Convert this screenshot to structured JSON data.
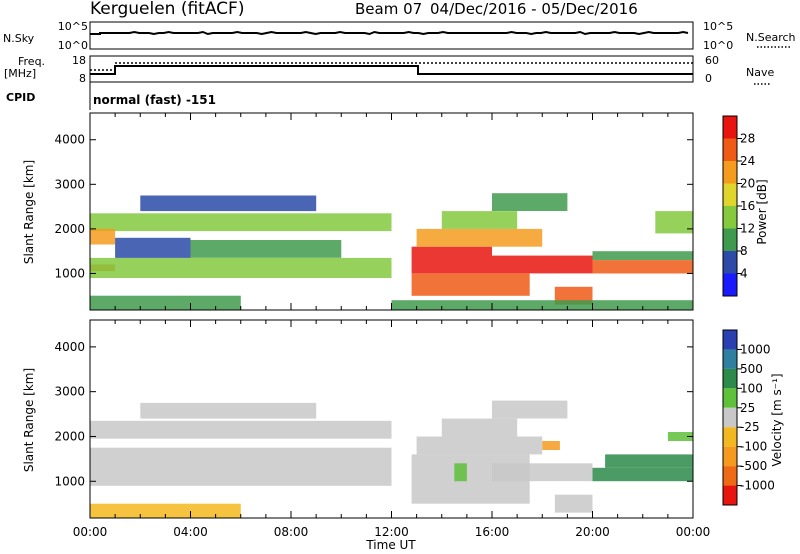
{
  "header": {
    "station": "Kerguelen (fitACF)",
    "beam_label": "Beam 07",
    "date_range": "04/Dec/2016 - 05/Dec/2016"
  },
  "aux": {
    "nsky_label": "N.Sky",
    "nsky_ticks": [
      "10^5",
      "10^0"
    ],
    "nsearch_label": "N.Search",
    "nsearch_ticks": [
      "10^5",
      "10^0"
    ],
    "freq_label_1": "Freq.",
    "freq_label_2": "[MHz]",
    "freq_ticks": [
      "18",
      "8"
    ],
    "nave_label": "Nave",
    "nave_ticks": [
      "60",
      "0"
    ],
    "cpid_label": "CPID",
    "cpid_text": "normal (fast) -151"
  },
  "axes": {
    "ylabel": "Slant Range [km]",
    "xlabel": "Time UT",
    "xticks": [
      "00:00",
      "04:00",
      "08:00",
      "12:00",
      "16:00",
      "20:00",
      "00:00"
    ],
    "yticks": [
      "1000",
      "2000",
      "3000",
      "4000"
    ]
  },
  "colors": {
    "power_scale": [
      "#1a1aff",
      "#2c4aa8",
      "#3f9a4e",
      "#84c93e",
      "#e0d52a",
      "#f59c1f",
      "#ef5b16",
      "#e8150e"
    ],
    "velocity_scale": [
      "#2a3fb0",
      "#2e7fa0",
      "#2c8a4a",
      "#5fc03a",
      "#c8c8c8",
      "#f3b81f",
      "#f39a1f",
      "#ef6a14",
      "#e8150e"
    ]
  },
  "chart_data": [
    {
      "type": "heatmap",
      "title": "Power",
      "xlabel": "Time UT",
      "ylabel": "Slant Range [km]",
      "xlim_hours": [
        0,
        24
      ],
      "ylim": [
        180,
        4600
      ],
      "colorbar": {
        "label": "Power [dB]",
        "ticks": [
          "28",
          "24",
          "20",
          "16",
          "12",
          "8",
          "4"
        ],
        "range": [
          0,
          32
        ]
      },
      "regions": [
        {
          "t0": 0.0,
          "t1": 12.0,
          "r0": 1950,
          "r1": 2350,
          "value": 14
        },
        {
          "t0": 0.0,
          "t1": 1.0,
          "r0": 1650,
          "r1": 2000,
          "value": 22
        },
        {
          "t0": 0.0,
          "t1": 1.0,
          "r0": 1050,
          "r1": 1200,
          "value": 24
        },
        {
          "t0": 0.0,
          "t1": 12.0,
          "r0": 900,
          "r1": 1350,
          "value": 12
        },
        {
          "t0": 4.0,
          "t1": 10.0,
          "r0": 1350,
          "r1": 1750,
          "value": 9
        },
        {
          "t0": 1.0,
          "t1": 4.0,
          "r0": 1350,
          "r1": 1800,
          "value": 6
        },
        {
          "t0": 2.0,
          "t1": 9.0,
          "r0": 2400,
          "r1": 2750,
          "value": 6
        },
        {
          "t0": 0.0,
          "t1": 6.0,
          "r0": 180,
          "r1": 500,
          "value": 8
        },
        {
          "t0": 12.8,
          "t1": 16.0,
          "r0": 1000,
          "r1": 1600,
          "value": 29
        },
        {
          "t0": 12.8,
          "t1": 17.5,
          "r0": 500,
          "r1": 1000,
          "value": 27
        },
        {
          "t0": 16.0,
          "t1": 20.0,
          "r0": 1000,
          "r1": 1400,
          "value": 28
        },
        {
          "t0": 13.0,
          "t1": 18.0,
          "r0": 1600,
          "r1": 2000,
          "value": 20
        },
        {
          "t0": 14.0,
          "t1": 17.0,
          "r0": 2000,
          "r1": 2400,
          "value": 14
        },
        {
          "t0": 16.0,
          "t1": 19.0,
          "r0": 2400,
          "r1": 2800,
          "value": 10
        },
        {
          "t0": 18.5,
          "t1": 20.0,
          "r0": 300,
          "r1": 700,
          "value": 26
        },
        {
          "t0": 20.0,
          "t1": 24.0,
          "r0": 1000,
          "r1": 1300,
          "value": 25
        },
        {
          "t0": 20.0,
          "t1": 24.0,
          "r0": 1300,
          "r1": 1500,
          "value": 10
        },
        {
          "t0": 22.5,
          "t1": 24.0,
          "r0": 1900,
          "r1": 2400,
          "value": 12
        },
        {
          "t0": 12.0,
          "t1": 24.0,
          "r0": 180,
          "r1": 400,
          "value": 10
        }
      ]
    },
    {
      "type": "heatmap",
      "title": "Velocity",
      "xlabel": "Time UT",
      "ylabel": "Slant Range [km]",
      "xlim_hours": [
        0,
        24
      ],
      "ylim": [
        180,
        4600
      ],
      "colorbar": {
        "label": "Velocity [m s⁻¹]",
        "ticks": [
          "1000",
          "500",
          "100",
          "25",
          "-25",
          "-100",
          "-500",
          "-1000"
        ],
        "range": [
          -1200,
          1200
        ]
      },
      "regions": [
        {
          "t0": 0.0,
          "t1": 12.0,
          "r0": 1950,
          "r1": 2350,
          "value": 0
        },
        {
          "t0": 0.0,
          "t1": 12.0,
          "r0": 900,
          "r1": 1750,
          "value": 0
        },
        {
          "t0": 2.0,
          "t1": 9.0,
          "r0": 2400,
          "r1": 2750,
          "value": 0
        },
        {
          "t0": 12.8,
          "t1": 17.5,
          "r0": 500,
          "r1": 1600,
          "value": 0
        },
        {
          "t0": 13.0,
          "t1": 18.0,
          "r0": 1600,
          "r1": 2000,
          "value": 0
        },
        {
          "t0": 14.0,
          "t1": 17.0,
          "r0": 2000,
          "r1": 2400,
          "value": 0
        },
        {
          "t0": 16.0,
          "t1": 19.0,
          "r0": 2400,
          "r1": 2800,
          "value": 0
        },
        {
          "t0": 16.0,
          "t1": 20.0,
          "r0": 1000,
          "r1": 1400,
          "value": 0
        },
        {
          "t0": 14.5,
          "t1": 15.0,
          "r0": 1000,
          "r1": 1400,
          "value": 80
        },
        {
          "t0": 20.0,
          "t1": 24.0,
          "r0": 1000,
          "r1": 1300,
          "value": 120
        },
        {
          "t0": 20.5,
          "t1": 24.0,
          "r0": 1300,
          "r1": 1600,
          "value": 400
        },
        {
          "t0": 23.0,
          "t1": 24.0,
          "r0": 1900,
          "r1": 2100,
          "value": 80
        },
        {
          "t0": 0.0,
          "t1": 6.0,
          "r0": 180,
          "r1": 500,
          "value": -60
        },
        {
          "t0": 18.5,
          "t1": 20.0,
          "r0": 300,
          "r1": 700,
          "value": 0
        },
        {
          "t0": 18.0,
          "t1": 18.7,
          "r0": 1700,
          "r1": 1900,
          "value": -120
        }
      ]
    }
  ]
}
